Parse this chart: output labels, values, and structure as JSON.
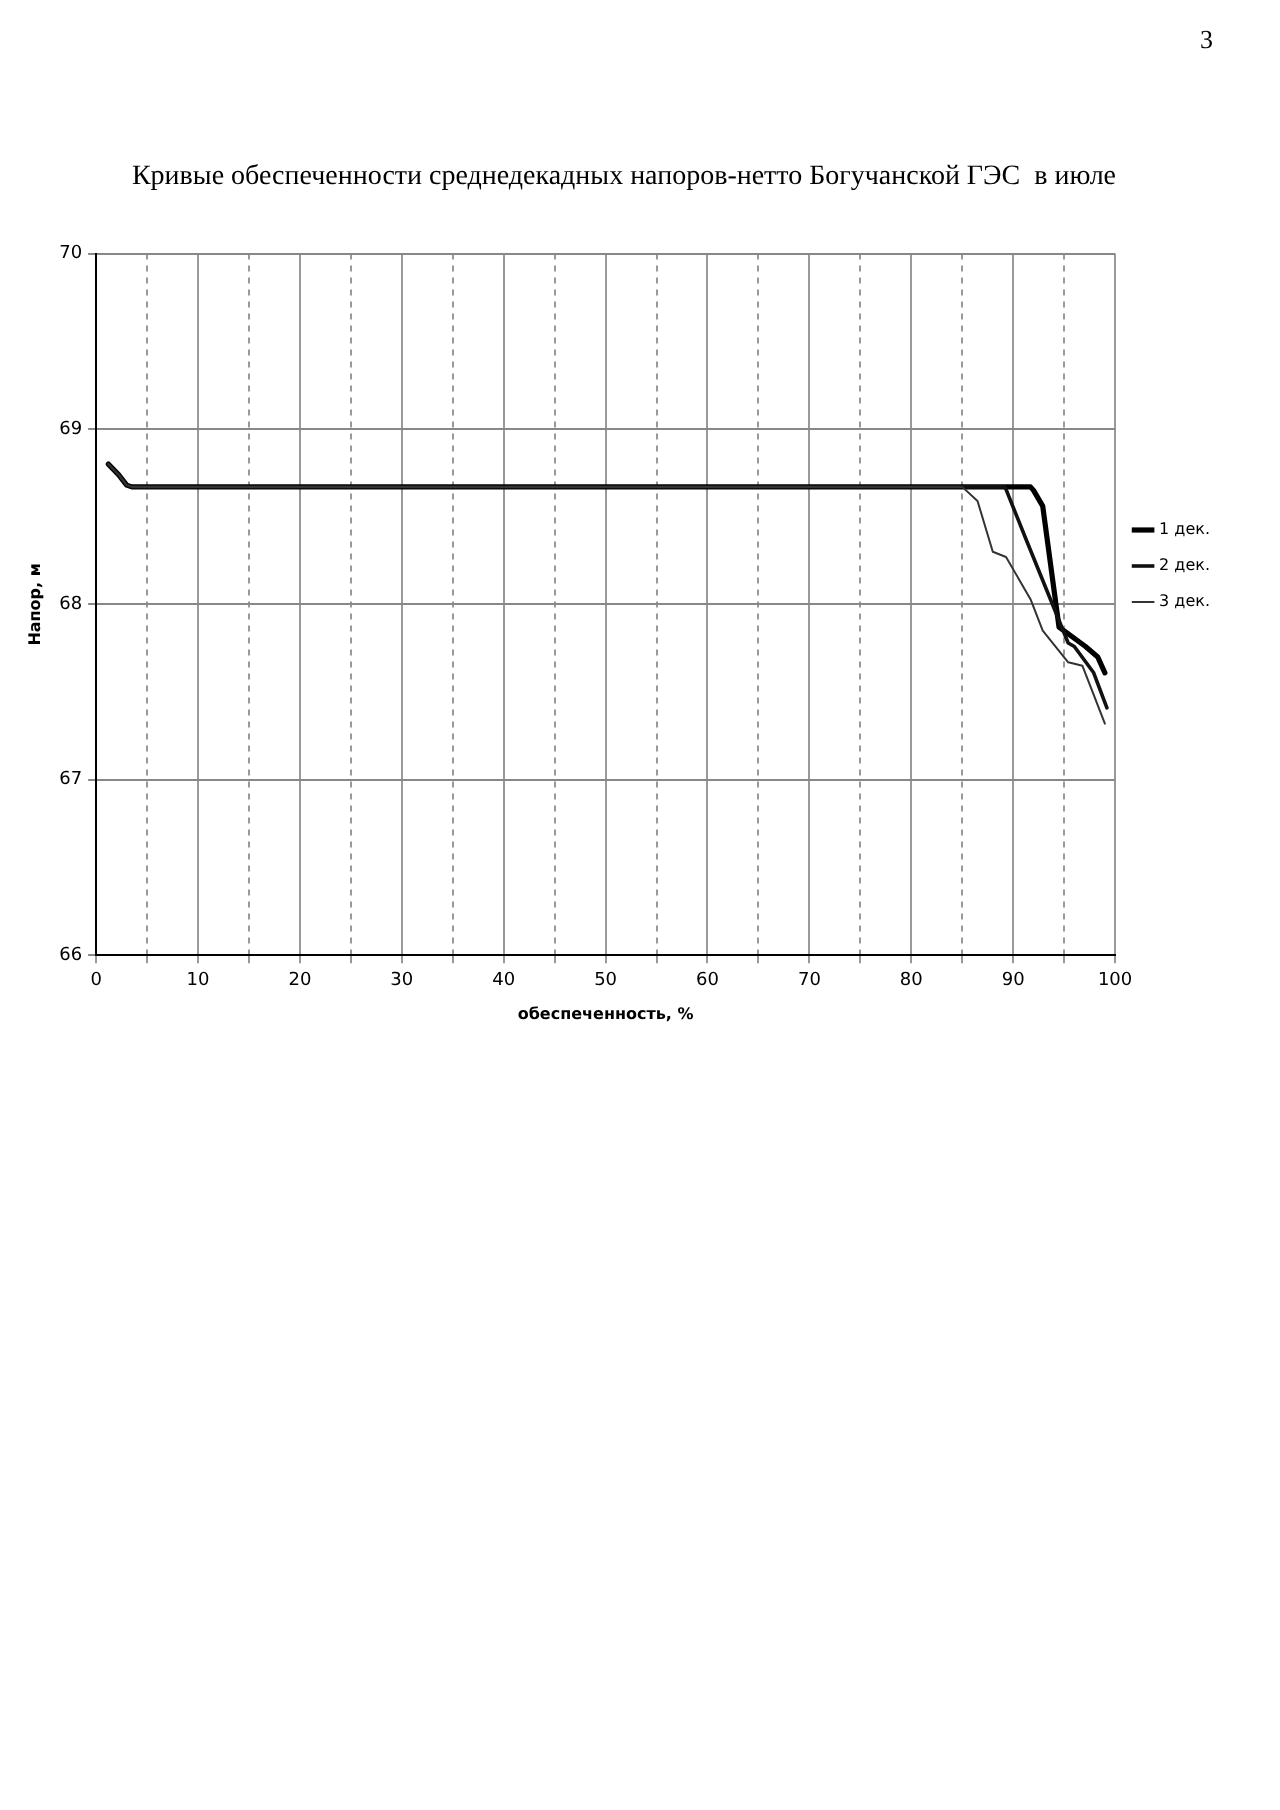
{
  "chart_data": {
    "type": "line",
    "title": "Кривые обеспеченности среднедекадных напоров-нетто Богучанской ГЭС  в июле",
    "xlabel": "обеспеченность, %",
    "ylabel": "Напор, м",
    "xlim": [
      0,
      100
    ],
    "xticks": [
      0,
      {
        "value": 5,
        "label": null
      },
      10,
      {
        "value": 15,
        "label": null
      },
      20,
      {
        "value": 25,
        "label": null
      },
      30,
      {
        "value": 35,
        "label": null
      },
      40,
      {
        "value": 45,
        "label": null
      },
      50,
      {
        "value": 55,
        "label": null
      },
      60,
      {
        "value": 65,
        "label": null
      },
      70,
      {
        "value": 75,
        "label": null
      },
      80,
      {
        "value": 85,
        "label": null
      },
      90,
      {
        "value": 95,
        "label": null
      },
      100
    ],
    "ylim": [
      66,
      70
    ],
    "yticks": [
      66,
      67,
      68,
      69,
      70
    ],
    "grid": true,
    "legend": "right",
    "marker": "none",
    "line_style": "solid",
    "series": [
      {
        "name": "1 дек.",
        "color": "#000000",
        "x": [
          1.2,
          2.2,
          3.0,
          3.5,
          91.7,
          92.0,
          92.9,
          94.5,
          97.1,
          98.3,
          99.0
        ],
        "values": [
          68.8,
          68.74,
          68.68,
          68.67,
          68.67,
          68.65,
          68.56,
          67.87,
          67.76,
          67.7,
          67.61
        ]
      },
      {
        "name": "2 дек.",
        "color": "#111111",
        "x": [
          1.2,
          2.2,
          3.0,
          3.5,
          89.2,
          91.2,
          95.4,
          96.0,
          97.9,
          99.2
        ],
        "values": [
          68.8,
          68.74,
          68.68,
          68.67,
          68.67,
          68.38,
          67.78,
          67.76,
          67.61,
          67.41
        ]
      },
      {
        "name": "3 дек.",
        "color": "#333333",
        "x": [
          1.2,
          2.2,
          3.0,
          3.5,
          85.0,
          86.5,
          88.0,
          89.3,
          91.7,
          92.9,
          95.4,
          96.8,
          99.0
        ],
        "values": [
          68.8,
          68.74,
          68.68,
          68.67,
          68.67,
          68.59,
          68.3,
          68.27,
          68.03,
          67.85,
          67.67,
          67.65,
          67.32
        ]
      }
    ],
    "annotations": [
      "3"
    ]
  }
}
